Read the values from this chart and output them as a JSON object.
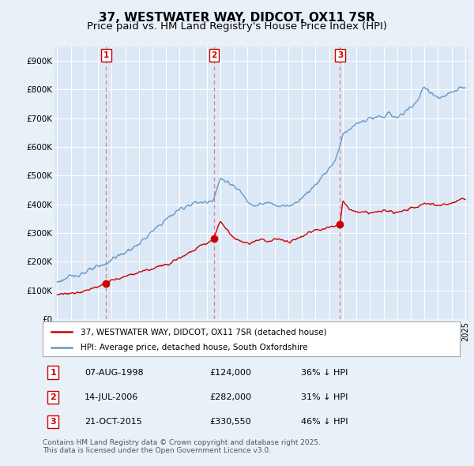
{
  "title": "37, WESTWATER WAY, DIDCOT, OX11 7SR",
  "subtitle": "Price paid vs. HM Land Registry's House Price Index (HPI)",
  "title_fontsize": 11,
  "subtitle_fontsize": 9.5,
  "ylim": [
    0,
    950000
  ],
  "yticks": [
    0,
    100000,
    200000,
    300000,
    400000,
    500000,
    600000,
    700000,
    800000,
    900000
  ],
  "ytick_labels": [
    "£0",
    "£100K",
    "£200K",
    "£300K",
    "£400K",
    "£500K",
    "£600K",
    "£700K",
    "£800K",
    "£900K"
  ],
  "xlim_start": 1994.8,
  "xlim_end": 2025.3,
  "bg_color": "#e8f0f8",
  "plot_bg_color": "#dce8f5",
  "grid_color": "#ffffff",
  "red_color": "#cc0000",
  "blue_color": "#6699cc",
  "dashed_color": "#e08080",
  "legend_label_red": "37, WESTWATER WAY, DIDCOT, OX11 7SR (detached house)",
  "legend_label_blue": "HPI: Average price, detached house, South Oxfordshire",
  "table_entries": [
    {
      "num": "1",
      "date": "07-AUG-1998",
      "price": "£124,000",
      "hpi": "36% ↓ HPI"
    },
    {
      "num": "2",
      "date": "14-JUL-2006",
      "price": "£282,000",
      "hpi": "31% ↓ HPI"
    },
    {
      "num": "3",
      "date": "21-OCT-2015",
      "price": "£330,550",
      "hpi": "46% ↓ HPI"
    }
  ],
  "footnote": "Contains HM Land Registry data © Crown copyright and database right 2025.\nThis data is licensed under the Open Government Licence v3.0.",
  "sale_markers": [
    {
      "year": 1998.6,
      "price": 124000,
      "label": "1"
    },
    {
      "year": 2006.53,
      "price": 282000,
      "label": "2"
    },
    {
      "year": 2015.8,
      "price": 330550,
      "label": "3"
    }
  ],
  "hpi_anchors_years": [
    1995,
    1996,
    1997,
    1998,
    1998.6,
    1999,
    2000,
    2001,
    2002,
    2003,
    2004,
    2005,
    2006,
    2006.5,
    2007,
    2007.5,
    2008,
    2008.5,
    2009,
    2009.5,
    2010,
    2010.5,
    2011,
    2011.5,
    2012,
    2012.5,
    2013,
    2013.5,
    2014,
    2014.5,
    2015,
    2015.5,
    2015.8,
    2016,
    2016.5,
    2017,
    2017.5,
    2018,
    2018.5,
    2019,
    2019.5,
    2020,
    2020.5,
    2021,
    2021.5,
    2022,
    2022.5,
    2023,
    2023.5,
    2024,
    2024.5,
    2025
  ],
  "hpi_anchors_vals": [
    130000,
    148000,
    163000,
    182000,
    193000,
    210000,
    232000,
    262000,
    305000,
    348000,
    383000,
    405000,
    408000,
    420000,
    490000,
    480000,
    460000,
    445000,
    415000,
    395000,
    400000,
    405000,
    400000,
    395000,
    395000,
    405000,
    425000,
    445000,
    470000,
    498000,
    525000,
    560000,
    605000,
    650000,
    660000,
    680000,
    690000,
    700000,
    700000,
    710000,
    715000,
    700000,
    720000,
    740000,
    760000,
    810000,
    790000,
    770000,
    775000,
    790000,
    800000,
    810000
  ],
  "red_anchors_years": [
    1995,
    1996,
    1997,
    1998,
    1998.6,
    1999,
    2000,
    2001,
    2002,
    2003,
    2004,
    2005,
    2005.5,
    2006,
    2006.5,
    2007,
    2007.5,
    2008,
    2008.5,
    2009,
    2009.5,
    2010,
    2010.5,
    2011,
    2011.5,
    2012,
    2012.5,
    2013,
    2013.5,
    2014,
    2014.5,
    2015,
    2015.5,
    2015.8,
    2016,
    2016.5,
    2017,
    2017.5,
    2018,
    2018.5,
    2019,
    2019.5,
    2020,
    2020.5,
    2021,
    2021.5,
    2022,
    2022.5,
    2023,
    2023.5,
    2024,
    2024.5,
    2025
  ],
  "red_anchors_vals": [
    85000,
    90000,
    98000,
    115000,
    124000,
    135000,
    148000,
    163000,
    175000,
    192000,
    215000,
    240000,
    255000,
    265000,
    282000,
    342000,
    310000,
    285000,
    270000,
    265000,
    270000,
    278000,
    272000,
    278000,
    278000,
    270000,
    278000,
    290000,
    302000,
    310000,
    315000,
    322000,
    328000,
    330550,
    415000,
    380000,
    375000,
    375000,
    370000,
    372000,
    380000,
    375000,
    370000,
    378000,
    388000,
    390000,
    405000,
    400000,
    395000,
    400000,
    405000,
    415000,
    420000
  ]
}
